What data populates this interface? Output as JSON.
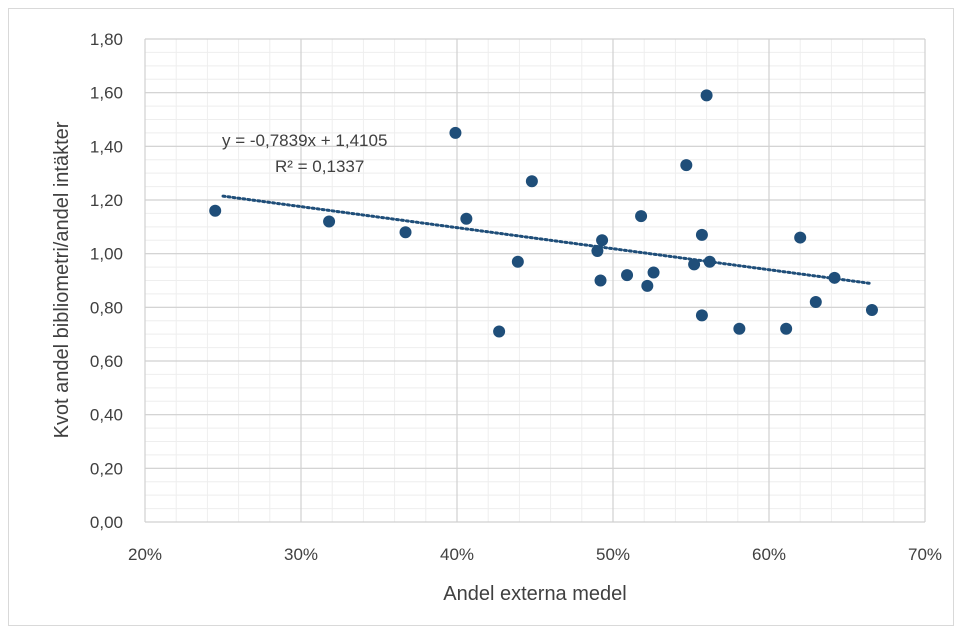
{
  "chart_data": {
    "type": "scatter",
    "xlabel": "Andel externa medel",
    "ylabel": "Kvot andel bibliometri/andel intäkter",
    "xlim": [
      0.2,
      0.7
    ],
    "ylim": [
      0.0,
      1.8
    ],
    "x_ticks": [
      "20%",
      "30%",
      "40%",
      "50%",
      "60%",
      "70%"
    ],
    "y_ticks": [
      "0,00",
      "0,20",
      "0,40",
      "0,60",
      "0,80",
      "1,00",
      "1,20",
      "1,40",
      "1,60",
      "1,80"
    ],
    "grid": true,
    "points_color": "#1f4e79",
    "trendline_color": "#1f4e79",
    "trendline": {
      "slope": -0.7839,
      "intercept": 1.4105,
      "x_start": 0.25,
      "x_end": 0.665
    },
    "equation": "y = -0,7839x + 1,4105",
    "r_squared": "R² = 0,1337",
    "x": [
      0.245,
      0.318,
      0.367,
      0.399,
      0.406,
      0.427,
      0.439,
      0.448,
      0.49,
      0.492,
      0.493,
      0.509,
      0.518,
      0.522,
      0.526,
      0.547,
      0.552,
      0.557,
      0.557,
      0.56,
      0.562,
      0.581,
      0.611,
      0.62,
      0.63,
      0.642,
      0.666
    ],
    "y": [
      1.16,
      1.12,
      1.08,
      1.45,
      1.13,
      0.71,
      0.97,
      1.27,
      1.01,
      0.9,
      1.05,
      0.92,
      1.14,
      0.88,
      0.93,
      1.33,
      0.96,
      0.77,
      1.07,
      1.59,
      0.97,
      0.72,
      0.72,
      1.06,
      0.82,
      0.91,
      0.79
    ]
  }
}
